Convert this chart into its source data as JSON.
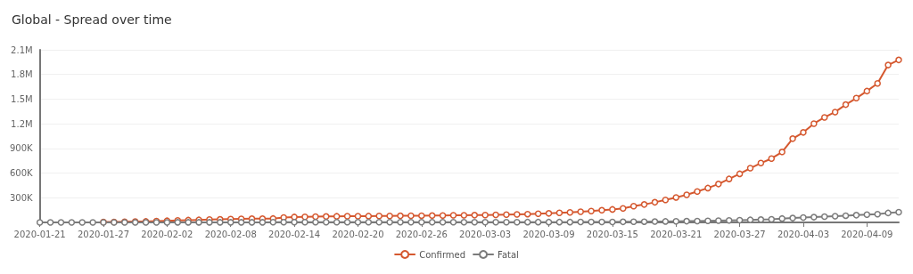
{
  "chart_data": {
    "type": "line",
    "title": "Global - Spread over time",
    "categories": [
      "2020-01-21",
      null,
      null,
      null,
      null,
      null,
      "2020-01-27",
      null,
      null,
      null,
      null,
      null,
      "2020-02-02",
      null,
      null,
      null,
      null,
      null,
      "2020-02-08",
      null,
      null,
      null,
      null,
      null,
      "2020-02-14",
      null,
      null,
      null,
      null,
      null,
      "2020-02-20",
      null,
      null,
      null,
      null,
      null,
      "2020-02-26",
      null,
      null,
      null,
      null,
      null,
      "2020-03-03",
      null,
      null,
      null,
      null,
      null,
      "2020-03-09",
      null,
      null,
      null,
      null,
      null,
      "2020-03-15",
      null,
      null,
      null,
      null,
      null,
      "2020-03-21",
      null,
      null,
      null,
      null,
      null,
      "2020-03-27",
      null,
      null,
      null,
      null,
      null,
      "2020-04-03",
      null,
      null,
      null,
      null,
      null,
      "2020-04-09",
      null,
      null,
      null
    ],
    "series": [
      {
        "name": "Confirmed",
        "color": "#d5582f",
        "values": [
          null,
          null,
          null,
          null,
          null,
          null,
          6000,
          6000,
          8000,
          10000,
          12000,
          17000,
          20000,
          24000,
          28000,
          31000,
          35000,
          37000,
          41000,
          43000,
          45000,
          45000,
          47000,
          60000,
          66000,
          68000,
          70000,
          72000,
          74000,
          75000,
          76000,
          77000,
          78000,
          79000,
          80000,
          81000,
          82000,
          83000,
          84000,
          86000,
          87000,
          88000,
          90000,
          92000,
          95000,
          98000,
          101000,
          105000,
          110000,
          116000,
          122000,
          130000,
          138000,
          148000,
          158000,
          170000,
          197000,
          218000,
          245000,
          273000,
          304000,
          335000,
          376000,
          418000,
          467000,
          529000,
          591000,
          660000,
          722000,
          777000,
          857000,
          1019000,
          1095000,
          1202000,
          1278000,
          1343000,
          1433000,
          1512000,
          1598000,
          1691000,
          1915000,
          1977000
        ]
      },
      {
        "name": "Fatal",
        "color": "#7b7b7b",
        "values": [
          0,
          0,
          0,
          0,
          0,
          0,
          0,
          0,
          0,
          0,
          0,
          0,
          0,
          1000,
          1000,
          1000,
          1000,
          1000,
          1000,
          1000,
          1000,
          1000,
          2000,
          2000,
          2000,
          2000,
          2000,
          2000,
          2000,
          2000,
          2000,
          3000,
          3000,
          3000,
          3000,
          3000,
          3000,
          3000,
          3000,
          3000,
          3000,
          3000,
          3000,
          3000,
          3000,
          3000,
          4000,
          4000,
          4000,
          4000,
          4000,
          5000,
          5000,
          5000,
          6000,
          7000,
          8000,
          9000,
          10000,
          12000,
          13000,
          15000,
          17000,
          19000,
          22000,
          25000,
          27000,
          31000,
          34000,
          38000,
          47000,
          53000,
          59000,
          64000,
          70000,
          75000,
          82000,
          88000,
          95000,
          100000,
          115000,
          125000
        ]
      }
    ],
    "ylim": [
      0,
      2100000
    ],
    "yticks": [
      {
        "value": 300000,
        "label": "300K"
      },
      {
        "value": 600000,
        "label": "600K"
      },
      {
        "value": 900000,
        "label": "900K"
      },
      {
        "value": 1200000,
        "label": "1.2M"
      },
      {
        "value": 1500000,
        "label": "1.5M"
      },
      {
        "value": 1800000,
        "label": "1.8M"
      },
      {
        "value": 2100000,
        "label": "2.1M"
      }
    ],
    "grid": "y",
    "legend": "bottom",
    "marker": "circle",
    "line_style": "solid"
  }
}
